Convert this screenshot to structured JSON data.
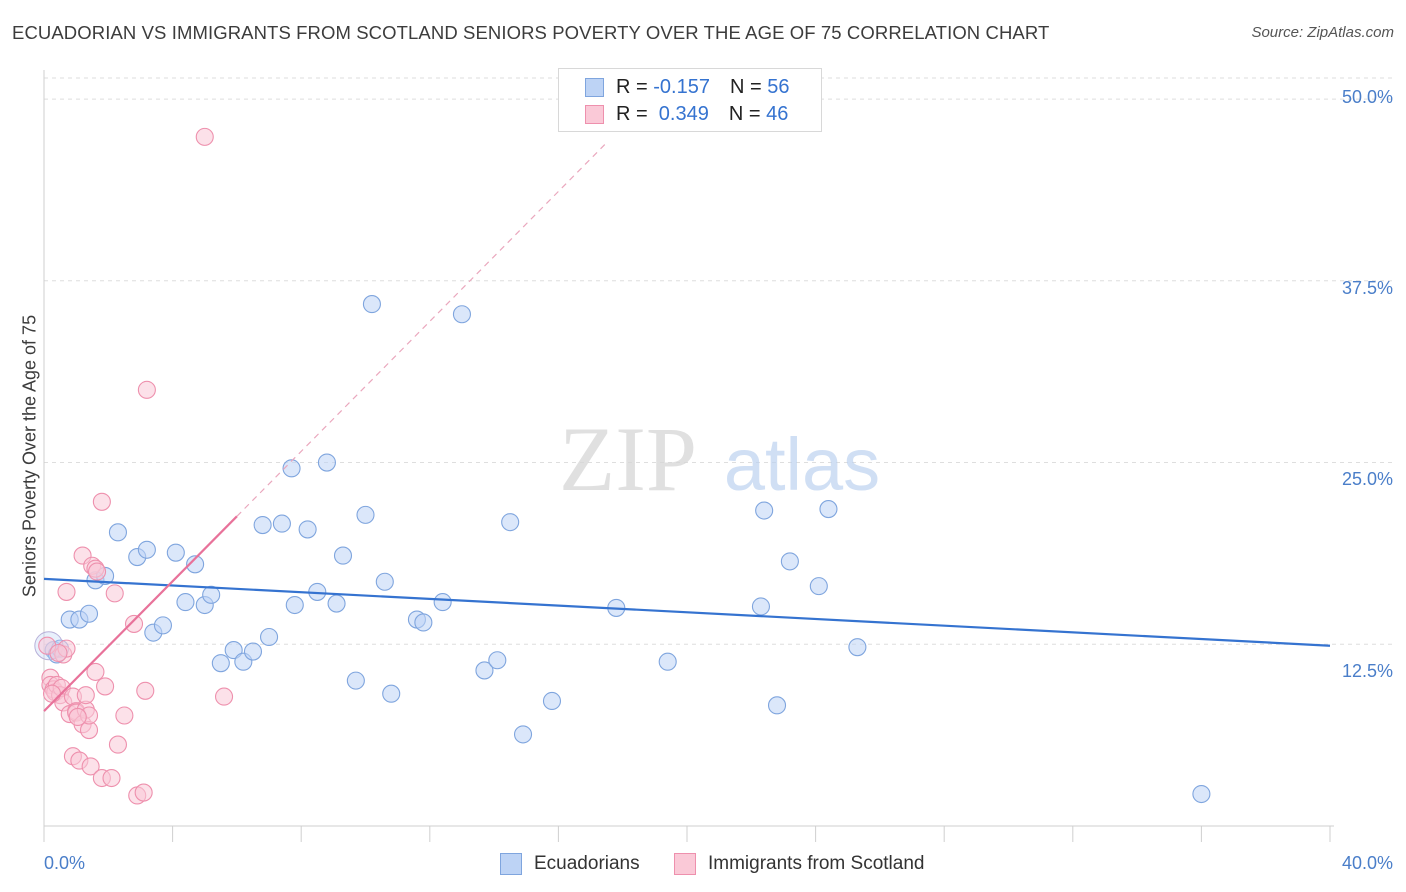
{
  "title": "ECUADORIAN VS IMMIGRANTS FROM SCOTLAND SENIORS POVERTY OVER THE AGE OF 75 CORRELATION CHART",
  "source": "Source: ZipAtlas.com",
  "watermark": {
    "zip": "ZIP",
    "atlas": "atlas"
  },
  "colors": {
    "blue": "#3573d0",
    "blue_fill": "#bdd3f5",
    "pink": "#e8729a",
    "pink_fill": "#fac9d7",
    "axis_text": "#4a7ec9"
  },
  "legend": {
    "rows": [
      {
        "r_label": "R =",
        "r_value": "-0.157",
        "n_label": "N =",
        "n_value": "56"
      },
      {
        "r_label": "R =",
        "r_value": " 0.349",
        "n_label": "N =",
        "n_value": "46"
      }
    ]
  },
  "chart_data": {
    "type": "scatter",
    "title": "ECUADORIAN VS IMMIGRANTS FROM SCOTLAND SENIORS POVERTY OVER THE AGE OF 75 CORRELATION CHART",
    "xlabel": "",
    "ylabel": "Seniors Poverty Over the Age of 75",
    "xlim": [
      0,
      40
    ],
    "ylim": [
      0,
      52
    ],
    "x_tick_labels": [
      "0.0%",
      "40.0%"
    ],
    "y_ticks": [
      12.5,
      25.0,
      37.5,
      50.0
    ],
    "y_tick_labels": [
      "12.5%",
      "25.0%",
      "37.5%",
      "50.0%"
    ],
    "grid": true,
    "legend_position": "top-center",
    "series": [
      {
        "name": "Ecuadorians",
        "color": "#3573d0",
        "r": -0.157,
        "n": 56,
        "trend": {
          "x": [
            0,
            40
          ],
          "y": [
            17.0,
            12.4
          ]
        },
        "points": [
          [
            0.3,
            12.1
          ],
          [
            0.4,
            11.8
          ],
          [
            0.5,
            12.2
          ],
          [
            0.8,
            14.2
          ],
          [
            1.1,
            14.2
          ],
          [
            1.4,
            14.6
          ],
          [
            1.6,
            16.9
          ],
          [
            1.9,
            17.2
          ],
          [
            2.3,
            20.2
          ],
          [
            2.9,
            18.5
          ],
          [
            3.2,
            19.0
          ],
          [
            3.4,
            13.3
          ],
          [
            3.7,
            13.8
          ],
          [
            4.1,
            18.8
          ],
          [
            4.4,
            15.4
          ],
          [
            4.7,
            18.0
          ],
          [
            5.0,
            15.2
          ],
          [
            5.2,
            15.9
          ],
          [
            5.5,
            11.2
          ],
          [
            5.9,
            12.1
          ],
          [
            6.2,
            11.3
          ],
          [
            6.5,
            12.0
          ],
          [
            6.8,
            20.7
          ],
          [
            7.0,
            13.0
          ],
          [
            7.4,
            20.8
          ],
          [
            7.7,
            24.6
          ],
          [
            7.8,
            15.2
          ],
          [
            8.2,
            20.4
          ],
          [
            8.5,
            16.1
          ],
          [
            8.8,
            25.0
          ],
          [
            9.1,
            15.3
          ],
          [
            9.3,
            18.6
          ],
          [
            9.7,
            10.0
          ],
          [
            10.0,
            21.4
          ],
          [
            10.2,
            35.9
          ],
          [
            10.6,
            16.8
          ],
          [
            10.8,
            9.1
          ],
          [
            11.6,
            14.2
          ],
          [
            11.8,
            14.0
          ],
          [
            12.4,
            15.4
          ],
          [
            13.0,
            35.2
          ],
          [
            13.7,
            10.7
          ],
          [
            14.1,
            11.4
          ],
          [
            14.5,
            20.9
          ],
          [
            14.9,
            6.3
          ],
          [
            15.8,
            8.6
          ],
          [
            17.8,
            15.0
          ],
          [
            19.4,
            11.3
          ],
          [
            22.3,
            15.1
          ],
          [
            22.4,
            21.7
          ],
          [
            22.8,
            8.3
          ],
          [
            23.2,
            18.2
          ],
          [
            24.1,
            16.5
          ],
          [
            24.4,
            21.8
          ],
          [
            25.3,
            12.3
          ],
          [
            36.0,
            2.2
          ]
        ]
      },
      {
        "name": "Immigrants from Scotland",
        "color": "#e8729a",
        "r": 0.349,
        "n": 46,
        "trend": {
          "x": [
            0,
            6.0
          ],
          "y": [
            7.9,
            21.3
          ]
        },
        "trend_extension": {
          "x": [
            6.0,
            17.5
          ],
          "y": [
            21.3,
            47.0
          ]
        },
        "points": [
          [
            0.1,
            12.4
          ],
          [
            0.2,
            10.2
          ],
          [
            0.2,
            9.7
          ],
          [
            0.3,
            9.4
          ],
          [
            0.35,
            9.2
          ],
          [
            0.4,
            9.7
          ],
          [
            0.5,
            9.0
          ],
          [
            0.55,
            9.5
          ],
          [
            0.6,
            11.8
          ],
          [
            0.7,
            12.2
          ],
          [
            0.6,
            8.5
          ],
          [
            0.7,
            16.1
          ],
          [
            0.8,
            7.7
          ],
          [
            0.9,
            8.9
          ],
          [
            0.9,
            4.8
          ],
          [
            1.0,
            7.9
          ],
          [
            1.0,
            7.8
          ],
          [
            1.1,
            4.5
          ],
          [
            1.2,
            7.0
          ],
          [
            1.2,
            18.6
          ],
          [
            1.3,
            8.0
          ],
          [
            1.3,
            9.0
          ],
          [
            1.4,
            6.6
          ],
          [
            1.45,
            4.1
          ],
          [
            1.4,
            7.6
          ],
          [
            1.5,
            17.9
          ],
          [
            1.6,
            17.7
          ],
          [
            1.6,
            10.6
          ],
          [
            1.65,
            17.5
          ],
          [
            1.8,
            3.3
          ],
          [
            1.8,
            22.3
          ],
          [
            1.9,
            9.6
          ],
          [
            2.1,
            3.3
          ],
          [
            2.2,
            16.0
          ],
          [
            2.3,
            5.6
          ],
          [
            2.5,
            7.6
          ],
          [
            2.8,
            13.9
          ],
          [
            2.9,
            2.1
          ],
          [
            3.1,
            2.3
          ],
          [
            3.15,
            9.3
          ],
          [
            3.2,
            30.0
          ],
          [
            5.0,
            47.4
          ],
          [
            5.6,
            8.9
          ],
          [
            0.45,
            11.9
          ],
          [
            0.25,
            9.1
          ],
          [
            1.05,
            7.5
          ]
        ]
      }
    ]
  },
  "bottom_legend": {
    "items": [
      "Ecuadorians",
      "Immigrants from Scotland"
    ]
  }
}
